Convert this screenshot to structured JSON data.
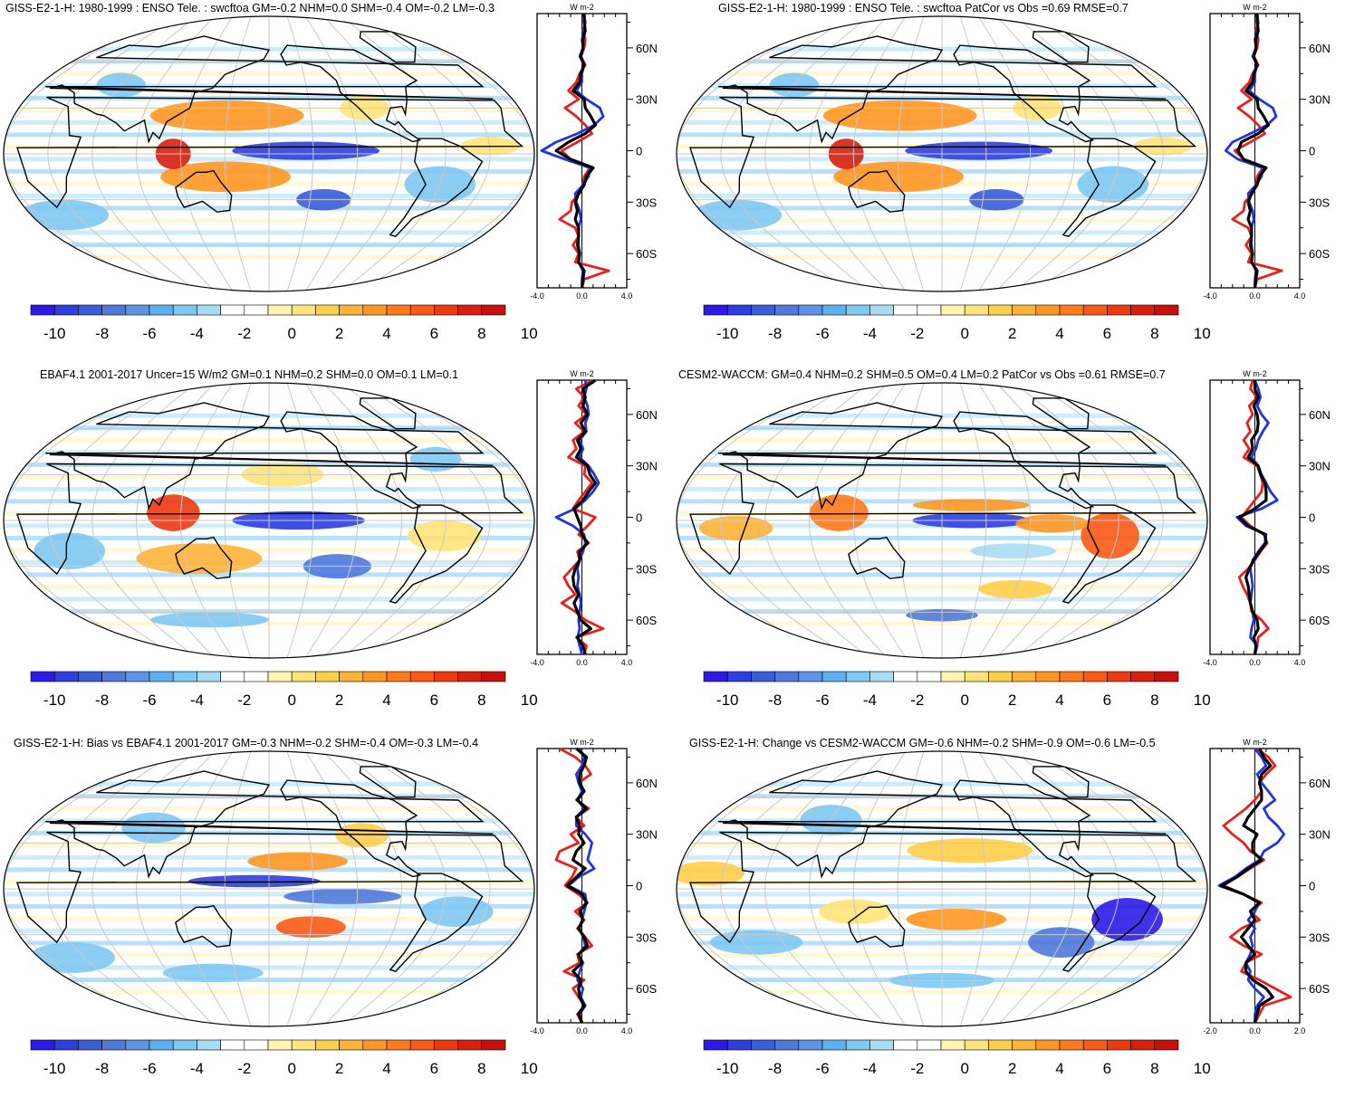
{
  "colorbar": {
    "levels": [
      "-10",
      "-8",
      "-6",
      "-4",
      "-2",
      "0",
      "2",
      "4",
      "6",
      "8",
      "10"
    ],
    "colors": [
      "#2c1be6",
      "#2e3fe0",
      "#3a5ed8",
      "#4f79da",
      "#5f93e5",
      "#5fb0ee",
      "#7ec8f2",
      "#a8dcf5",
      "#ffffff",
      "#ffffff",
      "#fff3b0",
      "#ffe37a",
      "#ffce4a",
      "#ffb238",
      "#ff9624",
      "#ff7a1a",
      "#fa5a16",
      "#ed3a12",
      "#d81f10",
      "#c70f0e"
    ]
  },
  "profile": {
    "unit": "W m-2",
    "lat_ticks": [
      "60N",
      "30N",
      "0",
      "30S",
      "60S"
    ],
    "series_colors": [
      "#e8201c",
      "#2233e0",
      "#000000"
    ]
  },
  "panels": [
    {
      "title": "GISS-E2-1-H: 1980-1999 : ENSO Tele. : swcftoa GM=-0.2 NHM=0.0 SHM=-0.4 OM=-0.2 LM=-0.3",
      "xticks": [
        "-4.0",
        "0.0",
        "4.0"
      ],
      "chart_data": {
        "type": "line",
        "xlim": [
          -4,
          4
        ],
        "ylim": [
          -80,
          80
        ],
        "lat": [
          80,
          75,
          70,
          65,
          60,
          55,
          50,
          45,
          40,
          35,
          30,
          25,
          20,
          15,
          10,
          5,
          0,
          -5,
          -10,
          -15,
          -20,
          -25,
          -30,
          -35,
          -40,
          -45,
          -50,
          -55,
          -60,
          -65,
          -70,
          -75,
          -80
        ],
        "series": [
          {
            "values": [
              0.2,
              0.3,
              0.1,
              0.3,
              0.2,
              -0.1,
              0.3,
              -0.2,
              -0.5,
              -1.2,
              -0.3,
              -1.5,
              -0.5,
              0.3,
              0.9,
              -0.4,
              -1.8,
              -1.0,
              0.7,
              0.2,
              0.1,
              -0.2,
              -0.9,
              -1.0,
              -2.0,
              -0.6,
              -0.3,
              -0.8,
              -0.3,
              -0.6,
              2.4,
              0.2,
              0.0
            ]
          },
          {
            "values": [
              0.1,
              0.3,
              0.2,
              0.0,
              0.1,
              -0.2,
              0.2,
              0.0,
              0.0,
              -0.5,
              0.4,
              1.6,
              1.9,
              1.1,
              -0.4,
              -2.3,
              -3.6,
              -1.5,
              0.7,
              0.6,
              0.1,
              -0.6,
              -0.5,
              -0.2,
              -0.1,
              -0.3,
              -0.3,
              -0.3,
              -0.2,
              -0.3,
              0.1,
              0.0,
              0.0
            ]
          },
          {
            "values": [
              0.2,
              0.2,
              0.3,
              0.1,
              0.1,
              -0.1,
              0.2,
              -0.1,
              -0.2,
              -0.8,
              0.2,
              0.3,
              0.8,
              1.2,
              0.3,
              -1.2,
              -2.3,
              -1.0,
              1.0,
              0.4,
              0.2,
              -0.3,
              -0.6,
              -0.4,
              -0.6,
              -0.3,
              -0.3,
              -0.4,
              -0.2,
              -0.3,
              0.2,
              0.1,
              0.0
            ]
          }
        ]
      }
    },
    {
      "title": "GISS-E2-1-H: 1980-1999 : ENSO Tele. : swcftoa PatCor vs Obs =0.69 RMSE=0.7",
      "xticks": [
        "-4.0",
        "0.0",
        "4.0"
      ],
      "chart_data": {
        "type": "line",
        "xlim": [
          -4,
          4
        ],
        "ylim": [
          -80,
          80
        ],
        "lat": [
          80,
          75,
          70,
          65,
          60,
          55,
          50,
          45,
          40,
          35,
          30,
          25,
          20,
          15,
          10,
          5,
          0,
          -5,
          -10,
          -15,
          -20,
          -25,
          -30,
          -35,
          -40,
          -45,
          -50,
          -55,
          -60,
          -65,
          -70,
          -75,
          -80
        ],
        "series": [
          {
            "values": [
              0.2,
              0.3,
              0.1,
              0.3,
              0.2,
              -0.1,
              0.3,
              -0.2,
              -0.5,
              -1.2,
              -0.3,
              -1.5,
              -0.5,
              0.3,
              0.9,
              -0.4,
              -1.8,
              -1.0,
              0.7,
              0.2,
              0.1,
              -0.2,
              -0.9,
              -1.0,
              -2.0,
              -0.6,
              -0.3,
              -0.8,
              -0.3,
              -0.6,
              2.4,
              0.2,
              0.0
            ]
          },
          {
            "values": [
              0.1,
              0.3,
              0.2,
              0.0,
              0.1,
              -0.2,
              0.2,
              0.0,
              0.0,
              -0.5,
              0.4,
              1.6,
              1.9,
              1.1,
              -0.4,
              -2.0,
              -2.6,
              -1.5,
              0.7,
              0.6,
              0.1,
              -0.6,
              -0.5,
              -0.2,
              -0.1,
              -0.3,
              -0.3,
              -0.3,
              -0.2,
              -0.3,
              0.1,
              0.0,
              0.0
            ]
          },
          {
            "values": [
              0.2,
              0.2,
              0.3,
              0.1,
              0.1,
              -0.1,
              0.2,
              -0.1,
              -0.2,
              -0.8,
              0.2,
              0.3,
              0.8,
              1.2,
              0.3,
              -1.2,
              -1.5,
              -1.0,
              1.0,
              0.4,
              0.2,
              -0.3,
              -0.6,
              -0.4,
              -0.6,
              -0.3,
              -0.3,
              -0.4,
              -0.2,
              -0.3,
              0.2,
              0.1,
              0.0
            ]
          }
        ]
      }
    },
    {
      "title": "EBAF4.1 2001-2017 Uncer=15 W/m2 GM=0.1 NHM=0.2 SHM=0.0 OM=0.1 LM=0.1",
      "xticks": [
        "-4.0",
        "0.0",
        "4.0"
      ],
      "chart_data": {
        "type": "line",
        "xlim": [
          -4,
          4
        ],
        "ylim": [
          -80,
          80
        ],
        "lat": [
          80,
          75,
          70,
          65,
          60,
          55,
          50,
          45,
          40,
          35,
          30,
          25,
          20,
          15,
          10,
          5,
          0,
          -5,
          -10,
          -15,
          -20,
          -25,
          -30,
          -35,
          -40,
          -45,
          -50,
          -55,
          -60,
          -65,
          -70,
          -75,
          -80
        ],
        "series": [
          {
            "values": [
              1.0,
              -0.5,
              0.2,
              -0.3,
              0.4,
              -0.6,
              0.2,
              -0.8,
              -0.5,
              -1.2,
              0.3,
              0.2,
              0.9,
              0.3,
              -0.3,
              -0.8,
              1.2,
              0.5,
              -0.3,
              0.6,
              -0.4,
              -0.2,
              -0.9,
              -1.6,
              -1.2,
              -0.6,
              -1.8,
              -0.6,
              0.3,
              1.9,
              -0.5,
              0.4,
              0.2
            ]
          },
          {
            "values": [
              0.3,
              0.4,
              0.2,
              0.5,
              0.6,
              0.3,
              0.4,
              -0.2,
              0.1,
              -0.2,
              0.6,
              1.1,
              1.5,
              1.0,
              0.3,
              -0.6,
              -2.3,
              -0.8,
              0.2,
              0.3,
              0.1,
              -0.2,
              -0.4,
              -0.3,
              -0.4,
              -0.2,
              -0.1,
              -0.2,
              -0.3,
              -0.2,
              -0.4,
              -0.2,
              0.0
            ]
          },
          {
            "values": [
              1.2,
              0.1,
              0.3,
              0.1,
              0.5,
              -0.1,
              0.3,
              -0.4,
              -0.1,
              -0.5,
              0.5,
              0.7,
              1.2,
              0.6,
              0.1,
              -0.7,
              -0.4,
              -0.1,
              0.0,
              0.5,
              -0.2,
              -0.2,
              -0.6,
              -0.8,
              -0.7,
              -0.3,
              -0.7,
              -0.4,
              -0.1,
              0.8,
              -0.4,
              0.1,
              0.3
            ]
          }
        ]
      }
    },
    {
      "title": "CESM2-WACCM: GM=0.4 NHM=0.2 SHM=0.5 OM=0.4 LM=0.2 PatCor vs Obs =0.61 RMSE=0.7",
      "xticks": [
        "-4.0",
        "0.0",
        "4.0"
      ],
      "chart_data": {
        "type": "line",
        "xlim": [
          -4,
          4
        ],
        "ylim": [
          -80,
          80
        ],
        "lat": [
          80,
          75,
          70,
          65,
          60,
          55,
          50,
          45,
          40,
          35,
          30,
          25,
          20,
          15,
          10,
          5,
          0,
          -5,
          -10,
          -15,
          -20,
          -25,
          -30,
          -35,
          -40,
          -45,
          -50,
          -55,
          -60,
          -65,
          -70,
          -75,
          -80
        ],
        "series": [
          {
            "values": [
              -0.2,
              -0.4,
              0.2,
              -0.5,
              -0.2,
              -0.7,
              -0.4,
              -1.0,
              -0.5,
              -1.0,
              0.2,
              0.5,
              0.7,
              0.6,
              0.0,
              -0.6,
              -1.2,
              -0.4,
              0.8,
              1.1,
              0.5,
              0.0,
              -0.6,
              -1.4,
              -1.1,
              -0.7,
              -0.4,
              -0.3,
              0.6,
              1.2,
              0.3,
              0.2,
              0.0
            ]
          },
          {
            "values": [
              0.0,
              0.3,
              0.5,
              0.2,
              0.6,
              1.2,
              0.7,
              0.3,
              0.1,
              -0.3,
              0.3,
              0.6,
              1.0,
              1.4,
              2.0,
              0.6,
              -1.6,
              -0.8,
              1.0,
              0.9,
              0.3,
              -0.2,
              -0.4,
              -0.3,
              -0.2,
              -0.3,
              -0.4,
              -0.2,
              -0.1,
              -0.3,
              -0.4,
              0.2,
              0.0
            ]
          },
          {
            "values": [
              0.0,
              0.0,
              0.3,
              -0.1,
              0.2,
              0.3,
              0.2,
              -0.3,
              -0.2,
              -0.6,
              0.3,
              0.5,
              0.9,
              1.0,
              1.0,
              0.0,
              -1.4,
              -0.6,
              0.9,
              1.0,
              0.4,
              -0.1,
              -0.5,
              -0.8,
              -0.6,
              -0.5,
              -0.4,
              -0.2,
              0.2,
              0.3,
              -0.1,
              0.1,
              0.0
            ]
          }
        ]
      }
    },
    {
      "title": "GISS-E2-1-H: Bias vs EBAF4.1 2001-2017 GM=-0.3 NHM=-0.2 SHM=-0.4 OM=-0.3 LM=-0.4",
      "xticks": [
        "-4.0",
        "0.0",
        "4.0"
      ],
      "chart_data": {
        "type": "line",
        "xlim": [
          -4,
          4
        ],
        "ylim": [
          -80,
          80
        ],
        "lat": [
          80,
          75,
          70,
          65,
          60,
          55,
          50,
          45,
          40,
          35,
          30,
          25,
          20,
          15,
          10,
          5,
          0,
          -5,
          -10,
          -15,
          -20,
          -25,
          -30,
          -35,
          -40,
          -45,
          -50,
          -55,
          -60,
          -65,
          -70,
          -75,
          -80
        ],
        "series": [
          {
            "values": [
              -2.0,
              -0.6,
              0.3,
              0.8,
              -0.3,
              0.2,
              -0.5,
              0.6,
              -0.5,
              0.2,
              -1.0,
              -0.3,
              -2.0,
              -2.3,
              -0.5,
              -0.9,
              -1.5,
              -0.3,
              0.5,
              -0.6,
              0.2,
              -0.4,
              0.3,
              0.9,
              -0.4,
              -0.2,
              -1.6,
              0.2,
              -0.8,
              -0.3,
              0.2,
              -0.4,
              0.0
            ]
          },
          {
            "values": [
              -0.2,
              0.2,
              0.0,
              -0.5,
              -0.3,
              0.0,
              -0.4,
              0.2,
              -0.5,
              -0.5,
              0.3,
              0.9,
              0.7,
              0.5,
              1.1,
              -0.3,
              -1.2,
              0.3,
              0.4,
              0.2,
              0.0,
              -0.2,
              0.1,
              0.3,
              -0.3,
              0.1,
              -0.2,
              -0.4,
              0.1,
              -0.1,
              0.3,
              -0.2,
              0.0
            ]
          },
          {
            "values": [
              -0.5,
              0.4,
              0.2,
              -0.2,
              -0.2,
              0.2,
              -0.4,
              0.4,
              -0.5,
              -0.2,
              -0.3,
              0.2,
              -0.5,
              -0.8,
              0.3,
              -0.5,
              -1.3,
              0.0,
              0.4,
              -0.2,
              0.1,
              -0.3,
              0.2,
              0.5,
              -0.3,
              0.0,
              -0.8,
              -0.1,
              -0.3,
              -0.2,
              0.2,
              -0.3,
              0.0
            ]
          }
        ]
      }
    },
    {
      "title": "GISS-E2-1-H: Change vs CESM2-WACCM GM=-0.6 NHM=-0.2 SHM=-0.9 OM=-0.6 LM=-0.5",
      "xticks": [
        "-2.0",
        "0.0",
        "2.0"
      ],
      "chart_data": {
        "type": "line",
        "xlim": [
          -2,
          2
        ],
        "ylim": [
          -80,
          80
        ],
        "lat": [
          80,
          75,
          70,
          65,
          60,
          55,
          50,
          45,
          40,
          35,
          30,
          25,
          20,
          15,
          10,
          5,
          0,
          -5,
          -10,
          -15,
          -20,
          -25,
          -30,
          -35,
          -40,
          -45,
          -50,
          -55,
          -60,
          -65,
          -70,
          -75,
          -80
        ],
        "series": [
          {
            "values": [
              0.1,
              0.6,
              0.9,
              0.5,
              0.2,
              0.3,
              0.0,
              -0.4,
              -0.9,
              -1.4,
              -1.0,
              -0.5,
              -0.2,
              0.4,
              -0.2,
              -0.8,
              -1.4,
              -0.5,
              0.3,
              -0.2,
              0.2,
              -0.6,
              -1.1,
              -0.5,
              0.3,
              -0.4,
              -0.6,
              0.2,
              0.9,
              1.6,
              0.4,
              0.2,
              0.0
            ]
          },
          {
            "values": [
              0.0,
              0.3,
              0.5,
              0.1,
              0.3,
              0.6,
              0.9,
              0.4,
              0.6,
              1.0,
              1.3,
              1.0,
              0.4,
              0.2,
              -0.4,
              -0.9,
              -1.6,
              -0.5,
              0.2,
              0.0,
              -0.3,
              0.0,
              -0.2,
              -0.1,
              -0.2,
              -0.4,
              -0.2,
              -0.3,
              0.0,
              0.4,
              0.1,
              0.0,
              0.0
            ]
          },
          {
            "values": [
              0.2,
              0.4,
              0.7,
              0.3,
              0.2,
              0.3,
              0.3,
              0.0,
              -0.3,
              -0.5,
              0.1,
              -0.1,
              -0.1,
              0.3,
              -0.3,
              -0.8,
              -1.5,
              -0.5,
              0.2,
              -0.2,
              0.0,
              -0.3,
              -0.6,
              -0.3,
              0.0,
              -0.4,
              -0.4,
              -0.1,
              0.5,
              0.8,
              0.2,
              0.1,
              0.0
            ]
          }
        ]
      }
    }
  ]
}
